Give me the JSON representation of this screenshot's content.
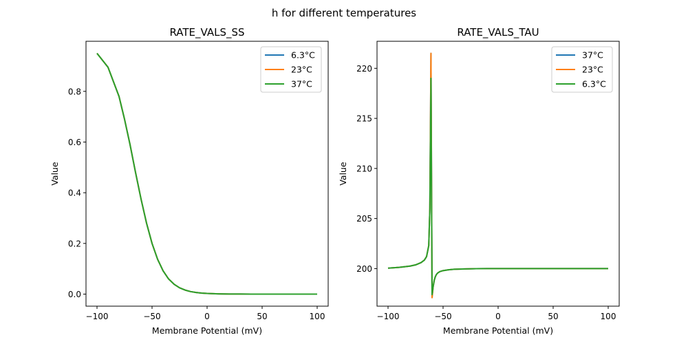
{
  "figure_title": "h for different temperatures",
  "colors": {
    "blue": "#1f77b4",
    "orange": "#ff7f0e",
    "green": "#2ca02c"
  },
  "chart_data": [
    {
      "type": "line",
      "title": "RATE_VALS_SS",
      "xlabel": "Membrane Potential (mV)",
      "ylabel": "Value",
      "xlim": [
        -110,
        110
      ],
      "ylim": [
        -0.0475,
        0.9975
      ],
      "xticks": [
        -100,
        -50,
        0,
        50,
        100
      ],
      "xtick_labels": [
        "−100",
        "−50",
        "0",
        "50",
        "100"
      ],
      "yticks": [
        0.0,
        0.2,
        0.4,
        0.6,
        0.8
      ],
      "ytick_labels": [
        "0.0",
        "0.2",
        "0.4",
        "0.6",
        "0.8"
      ],
      "legend_placement": "upper right",
      "x": [
        -100,
        -90,
        -80,
        -75,
        -70,
        -65,
        -60,
        -55,
        -50,
        -45,
        -40,
        -35,
        -30,
        -25,
        -20,
        -15,
        -10,
        -5,
        0,
        10,
        20,
        30,
        40,
        50,
        60,
        70,
        80,
        90,
        100
      ],
      "series": [
        {
          "name": "6.3°C",
          "color": "#1f77b4",
          "values": [
            0.95,
            0.895,
            0.78,
            0.69,
            0.59,
            0.48,
            0.375,
            0.28,
            0.2,
            0.138,
            0.092,
            0.06,
            0.039,
            0.025,
            0.016,
            0.01,
            0.0065,
            0.004,
            0.0026,
            0.0011,
            0.0005,
            0.0002,
            0.0001,
            0.0,
            0.0,
            0.0,
            0.0,
            0.0,
            0.0
          ]
        },
        {
          "name": "23°C",
          "color": "#ff7f0e",
          "values": [
            0.95,
            0.895,
            0.78,
            0.69,
            0.59,
            0.48,
            0.375,
            0.28,
            0.2,
            0.138,
            0.092,
            0.06,
            0.039,
            0.025,
            0.016,
            0.01,
            0.0065,
            0.004,
            0.0026,
            0.0011,
            0.0005,
            0.0002,
            0.0001,
            0.0,
            0.0,
            0.0,
            0.0,
            0.0,
            0.0
          ]
        },
        {
          "name": "37°C",
          "color": "#2ca02c",
          "values": [
            0.95,
            0.895,
            0.78,
            0.69,
            0.59,
            0.48,
            0.375,
            0.28,
            0.2,
            0.138,
            0.092,
            0.06,
            0.039,
            0.025,
            0.016,
            0.01,
            0.0065,
            0.004,
            0.0026,
            0.0011,
            0.0005,
            0.0002,
            0.0001,
            0.0,
            0.0,
            0.0,
            0.0,
            0.0,
            0.0
          ]
        }
      ]
    },
    {
      "type": "line",
      "title": "RATE_VALS_TAU",
      "xlabel": "Membrane Potential (mV)",
      "ylabel": "Value",
      "xlim": [
        -110,
        110
      ],
      "ylim": [
        196.25,
        222.7
      ],
      "xticks": [
        -100,
        -50,
        0,
        50,
        100
      ],
      "xtick_labels": [
        "−100",
        "−50",
        "0",
        "50",
        "100"
      ],
      "yticks": [
        200,
        205,
        210,
        215,
        220
      ],
      "ytick_labels": [
        "200",
        "205",
        "210",
        "215",
        "220"
      ],
      "legend_placement": "upper right",
      "x": [
        -100,
        -90,
        -80,
        -75,
        -70,
        -67,
        -65,
        -63,
        -62,
        -61,
        -60,
        -59,
        -58,
        -57,
        -56,
        -55,
        -53,
        -50,
        -45,
        -40,
        -30,
        -20,
        -10,
        0,
        25,
        50,
        75,
        100
      ],
      "series": [
        {
          "name": "37°C",
          "color": "#1f77b4",
          "values": [
            200.05,
            200.12,
            200.25,
            200.37,
            200.6,
            200.85,
            201.2,
            202.3,
            206.0,
            221.5,
            197.1,
            198.2,
            198.85,
            199.2,
            199.42,
            199.55,
            199.7,
            199.8,
            199.88,
            199.93,
            199.97,
            199.99,
            200.0,
            200.0,
            200.0,
            200.0,
            200.0,
            200.0
          ]
        },
        {
          "name": "23°C",
          "color": "#ff7f0e",
          "values": [
            200.05,
            200.12,
            200.25,
            200.37,
            200.6,
            200.85,
            201.2,
            202.3,
            206.0,
            221.5,
            197.1,
            198.2,
            198.85,
            199.2,
            199.42,
            199.55,
            199.7,
            199.8,
            199.88,
            199.93,
            199.97,
            199.99,
            200.0,
            200.0,
            200.0,
            200.0,
            200.0,
            200.0
          ]
        },
        {
          "name": "6.3°C",
          "color": "#2ca02c",
          "values": [
            200.05,
            200.12,
            200.25,
            200.37,
            200.6,
            200.85,
            201.2,
            202.3,
            206.0,
            219.0,
            197.4,
            198.2,
            198.85,
            199.2,
            199.42,
            199.55,
            199.7,
            199.8,
            199.88,
            199.93,
            199.97,
            199.99,
            200.0,
            200.0,
            200.0,
            200.0,
            200.0,
            200.0
          ]
        }
      ]
    }
  ]
}
